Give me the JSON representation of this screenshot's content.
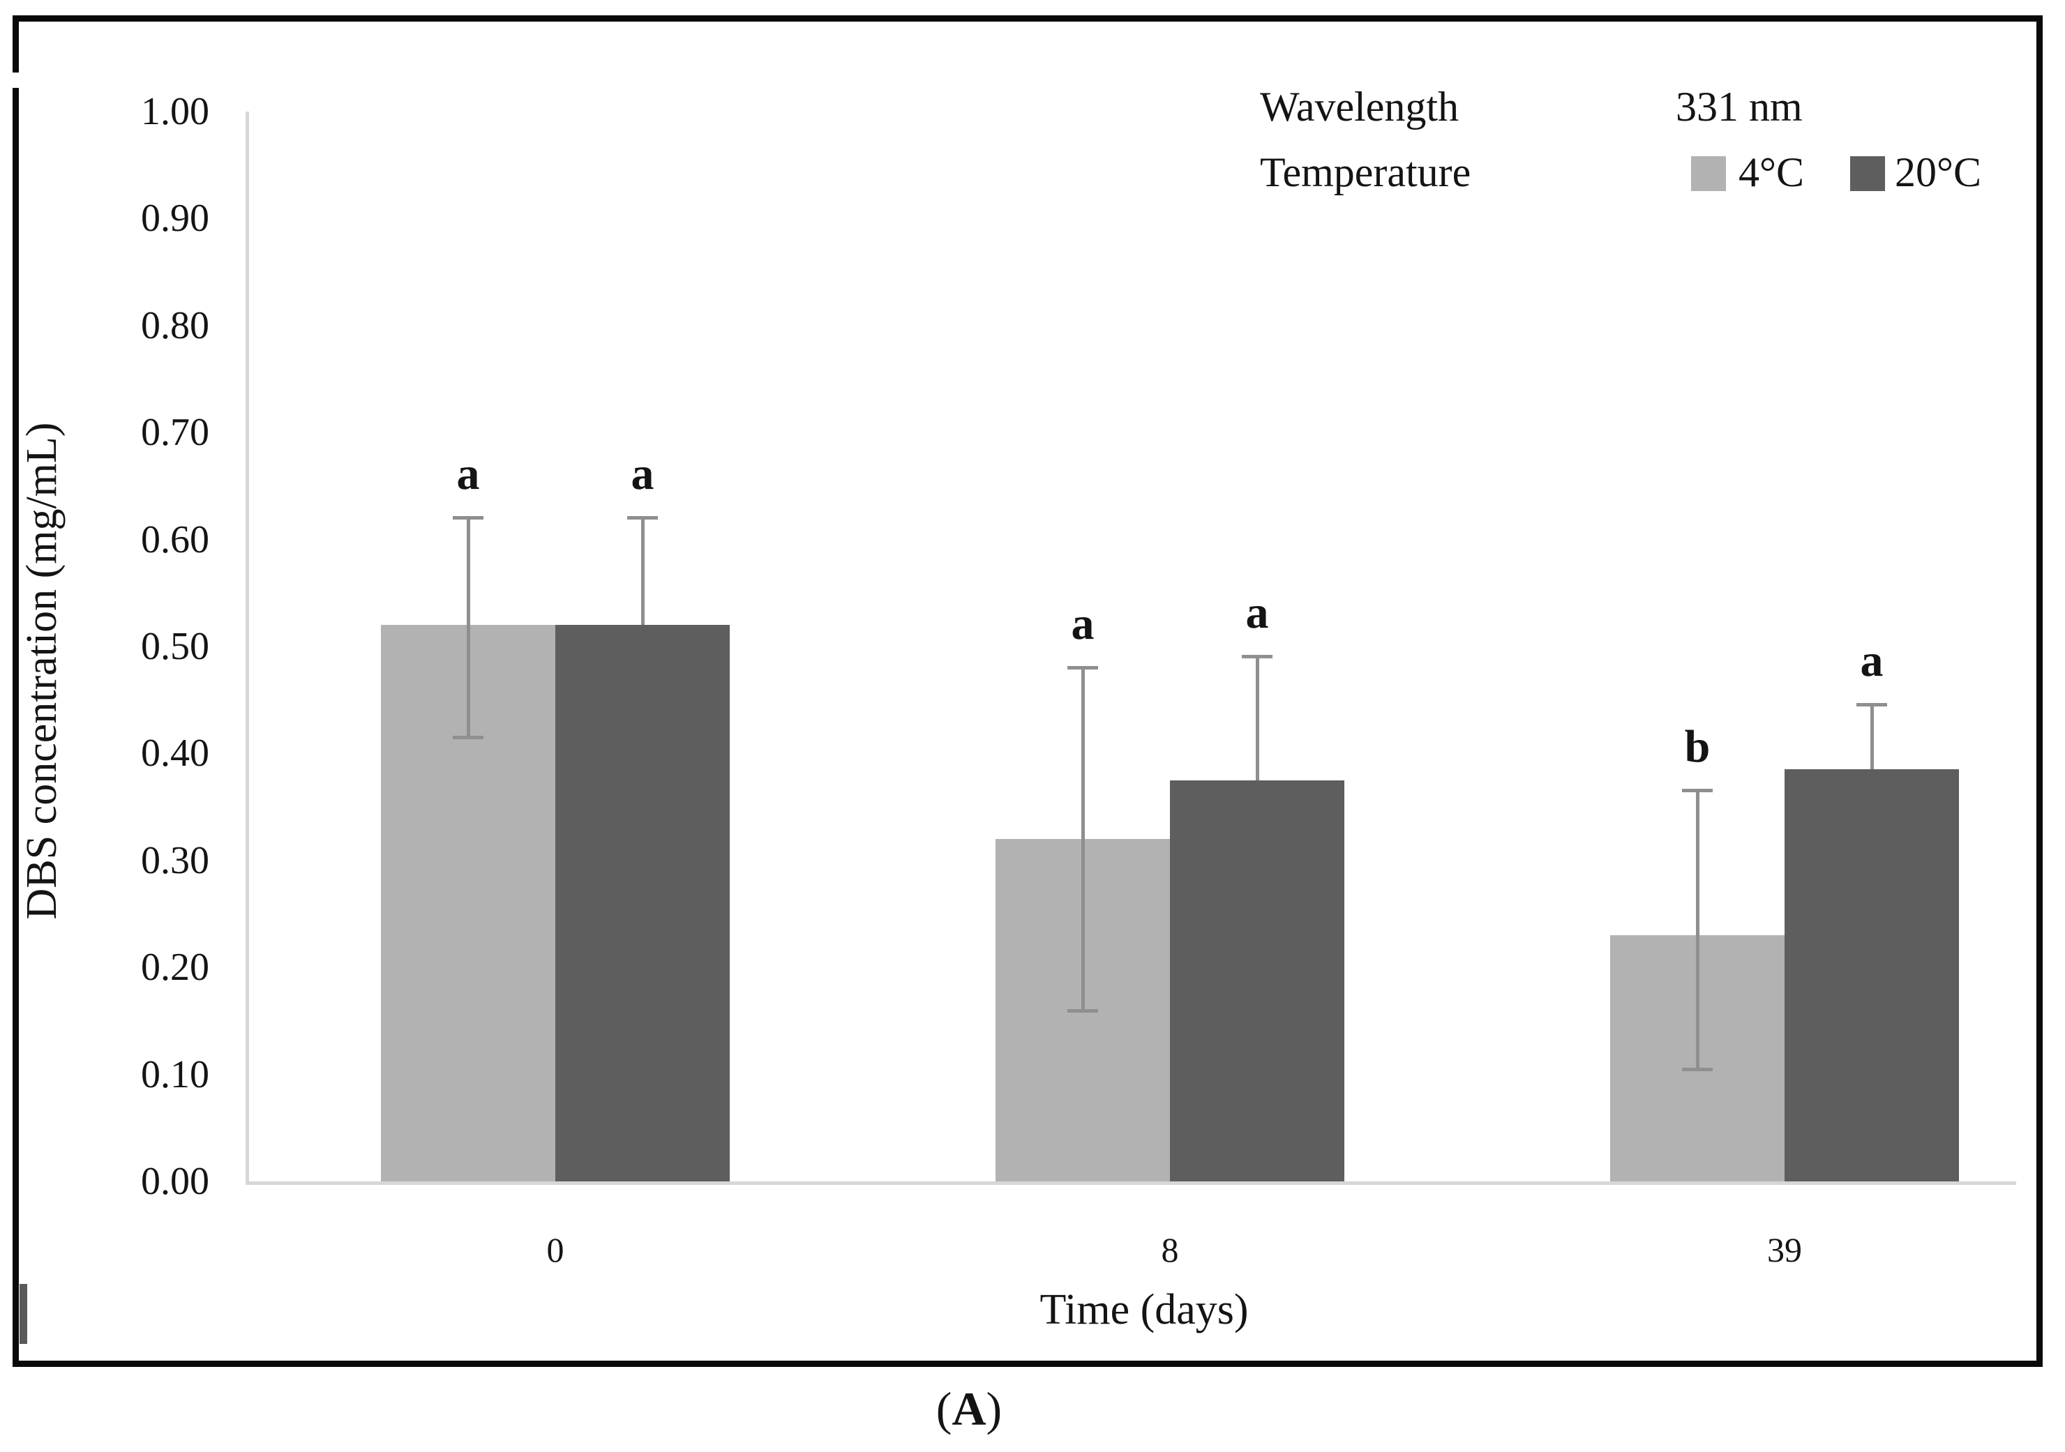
{
  "figure": {
    "caption_open": "(",
    "caption_letter": "A",
    "caption_close": ")"
  },
  "legend": {
    "row1_label": "Wavelength",
    "row1_value": "331 nm",
    "row2_label": "Temperature",
    "series1_label": "4°C",
    "series2_label": "20°C"
  },
  "axes": {
    "y_title": "DBS concentration (mg/mL)",
    "x_title": "Time (days)",
    "y_ticks": [
      "1.00",
      "0.90",
      "0.80",
      "0.70",
      "0.60",
      "0.50",
      "0.40",
      "0.30",
      "0.20",
      "0.10",
      "0.00"
    ],
    "x_ticks": [
      "0",
      "8",
      "39"
    ]
  },
  "colors": {
    "series1_fill": "#b2b2b2",
    "series2_fill": "#5e5e5e",
    "axis_line": "#d7d7d7",
    "error_bar": "#8f8f8f",
    "frame": "#0a0a0a"
  },
  "chart_data": {
    "type": "bar",
    "title": "Wavelength 331 nm",
    "subtitle": "Temperature 4°C vs 20°C",
    "categories": [
      "0",
      "8",
      "39"
    ],
    "xlabel": "Time (days)",
    "ylabel": "DBS concentration (mg/mL)",
    "ylim": [
      0,
      1.0
    ],
    "ytick_step": 0.1,
    "grid": false,
    "legend_position": "top-right",
    "error_bars": true,
    "significance_letters": true,
    "series": [
      {
        "name": "4°C",
        "color": "#b2b2b2",
        "points": [
          {
            "category": "0",
            "value": 0.52,
            "err_hi": 0.62,
            "err_lo": 0.415,
            "letter": "a"
          },
          {
            "category": "8",
            "value": 0.32,
            "err_hi": 0.48,
            "err_lo": 0.16,
            "letter": "a"
          },
          {
            "category": "39",
            "value": 0.23,
            "err_hi": 0.365,
            "err_lo": 0.105,
            "letter": "b"
          }
        ]
      },
      {
        "name": "20°C",
        "color": "#5e5e5e",
        "points": [
          {
            "category": "0",
            "value": 0.52,
            "err_hi": 0.62,
            "err_lo": null,
            "letter": "a"
          },
          {
            "category": "8",
            "value": 0.375,
            "err_hi": 0.49,
            "err_lo": null,
            "letter": "a"
          },
          {
            "category": "39",
            "value": 0.385,
            "err_hi": 0.445,
            "err_lo": null,
            "letter": "a"
          }
        ]
      }
    ]
  }
}
